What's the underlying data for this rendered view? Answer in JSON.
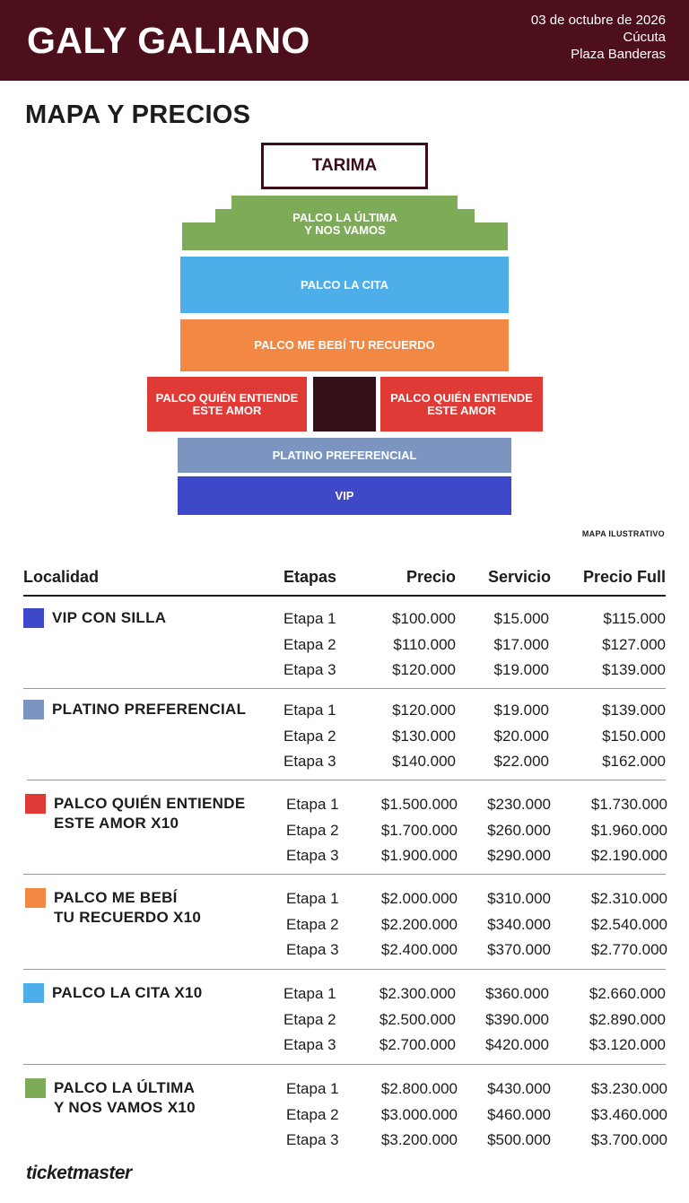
{
  "header": {
    "artist": "GALY GALIANO",
    "date": "03 de octubre de 2026",
    "city": "Cúcuta",
    "venue": "Plaza Banderas",
    "background": "#4d0f1b"
  },
  "section_title": "MAPA Y PRECIOS",
  "map": {
    "stage_label": "TARIMA",
    "zones": {
      "ultima": {
        "label": "PALCO LA ÚLTIMA\nY NOS VAMOS",
        "color": "#7eab57"
      },
      "cita": {
        "label": "PALCO LA CITA",
        "color": "#4eaeea"
      },
      "recuerdo": {
        "label": "PALCO ME BEBÍ TU RECUERDO",
        "color": "#f28843"
      },
      "quien_left": {
        "label": "PALCO QUIÉN ENTIENDE\nESTE AMOR",
        "color": "#df3a36"
      },
      "quien_right": {
        "label": "PALCO QUIÉN ENTIENDE\nESTE AMOR",
        "color": "#df3a36"
      },
      "center_block": {
        "color": "#341018"
      },
      "platino": {
        "label": "PLATINO PREFERENCIAL",
        "color": "#7b95c0"
      },
      "vip": {
        "label": "VIP",
        "color": "#3f48c8"
      }
    },
    "note": "MAPA ILUSTRATIVO"
  },
  "table": {
    "headers": {
      "localidad": "Localidad",
      "etapas": "Etapas",
      "precio": "Precio",
      "servicio": "Servicio",
      "precio_full": "Precio Full"
    },
    "rows": [
      {
        "name_lines": [
          "VIP CON SILLA"
        ],
        "color": "#3f48c8",
        "stages": [
          {
            "etapa": "Etapa 1",
            "precio": "$100.000",
            "servicio": "$15.000",
            "full": "$115.000"
          },
          {
            "etapa": "Etapa 2",
            "precio": "$110.000",
            "servicio": "$17.000",
            "full": "$127.000"
          },
          {
            "etapa": "Etapa 3",
            "precio": "$120.000",
            "servicio": "$19.000",
            "full": "$139.000"
          }
        ]
      },
      {
        "name_lines": [
          "PLATINO PREFERENCIAL"
        ],
        "color": "#7b95c0",
        "stages": [
          {
            "etapa": "Etapa 1",
            "precio": "$120.000",
            "servicio": "$19.000",
            "full": "$139.000"
          },
          {
            "etapa": "Etapa 2",
            "precio": "$130.000",
            "servicio": "$20.000",
            "full": "$150.000"
          },
          {
            "etapa": "Etapa 3",
            "precio": "$140.000",
            "servicio": "$22.000",
            "full": "$162.000"
          }
        ]
      },
      {
        "name_lines": [
          "PALCO QUIÉN ENTIENDE",
          "ESTE AMOR X10"
        ],
        "color": "#df3a36",
        "stages": [
          {
            "etapa": "Etapa 1",
            "precio": "$1.500.000",
            "servicio": "$230.000",
            "full": "$1.730.000"
          },
          {
            "etapa": "Etapa 2",
            "precio": "$1.700.000",
            "servicio": "$260.000",
            "full": "$1.960.000"
          },
          {
            "etapa": "Etapa 3",
            "precio": "$1.900.000",
            "servicio": "$290.000",
            "full": "$2.190.000"
          }
        ]
      },
      {
        "name_lines": [
          "PALCO ME BEBÍ",
          "TU RECUERDO X10"
        ],
        "color": "#f28843",
        "stages": [
          {
            "etapa": "Etapa 1",
            "precio": "$2.000.000",
            "servicio": "$310.000",
            "full": "$2.310.000"
          },
          {
            "etapa": "Etapa 2",
            "precio": "$2.200.000",
            "servicio": "$340.000",
            "full": "$2.540.000"
          },
          {
            "etapa": "Etapa 3",
            "precio": "$2.400.000",
            "servicio": "$370.000",
            "full": "$2.770.000"
          }
        ]
      },
      {
        "name_lines": [
          "PALCO LA CITA X10"
        ],
        "color": "#4eaeea",
        "stages": [
          {
            "etapa": "Etapa 1",
            "precio": "$2.300.000",
            "servicio": "$360.000",
            "full": "$2.660.000"
          },
          {
            "etapa": "Etapa 2",
            "precio": "$2.500.000",
            "servicio": "$390.000",
            "full": "$2.890.000"
          },
          {
            "etapa": "Etapa 3",
            "precio": "$2.700.000",
            "servicio": "$420.000",
            "full": "$3.120.000"
          }
        ]
      },
      {
        "name_lines": [
          "PALCO LA ÚLTIMA",
          "Y NOS VAMOS X10"
        ],
        "color": "#7eab57",
        "stages": [
          {
            "etapa": "Etapa 1",
            "precio": "$2.800.000",
            "servicio": "$430.000",
            "full": "$3.230.000"
          },
          {
            "etapa": "Etapa 2",
            "precio": "$3.000.000",
            "servicio": "$460.000",
            "full": "$3.460.000"
          },
          {
            "etapa": "Etapa 3",
            "precio": "$3.200.000",
            "servicio": "$500.000",
            "full": "$3.700.000"
          }
        ]
      }
    ]
  },
  "footer": {
    "logo_text": "ticketmaster"
  }
}
